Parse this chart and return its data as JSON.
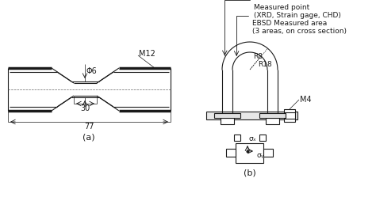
{
  "background_color": "#ffffff",
  "line_color": "#1a1a1a",
  "title_a": "(a)",
  "title_b": "(b)",
  "label_m12": "M12",
  "label_phi6": "Φ6",
  "label_30": "30",
  "label_77": "77",
  "label_r8": "R8",
  "label_r18": "R18",
  "label_m4": "M4",
  "label_measured_point": "Measured point\n(XRD, Strain gage, CHD)",
  "label_ebsd": "EBSD Measured area\n(3 areas, on cross section)",
  "label_sigma_x": "σₓ",
  "label_sigma_y": "σᵧ",
  "font_size": 7,
  "annotation_font_size": 6.5
}
